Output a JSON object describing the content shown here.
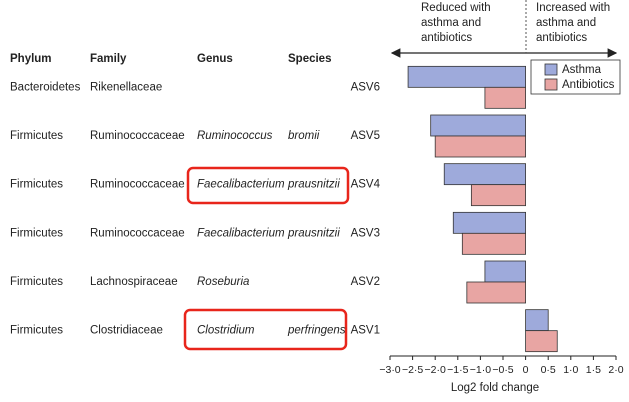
{
  "chart_data": {
    "type": "bar",
    "orientation": "horizontal",
    "categories": [
      "ASV6",
      "ASV5",
      "ASV4",
      "ASV3",
      "ASV2",
      "ASV1"
    ],
    "series": [
      {
        "name": "Asthma",
        "color": "#9eaadb",
        "values": [
          -2.6,
          -2.1,
          -1.8,
          -1.6,
          -0.9,
          0.5
        ]
      },
      {
        "name": "Antibiotics",
        "color": "#e8a5a3",
        "values": [
          -0.9,
          -2.0,
          -1.2,
          -1.4,
          -1.3,
          0.7
        ]
      }
    ],
    "xlim": [
      -3.0,
      2.0
    ],
    "xticks": [
      {
        "value": -3.0,
        "label": "−3·0"
      },
      {
        "value": -2.5,
        "label": "−2·5"
      },
      {
        "value": -2.0,
        "label": "−2·0"
      },
      {
        "value": -1.5,
        "label": "−1·5"
      },
      {
        "value": -1.0,
        "label": "−1·0"
      },
      {
        "value": -0.5,
        "label": "−0·5"
      },
      0,
      {
        "value": 0.5,
        "label": "0·5"
      },
      {
        "value": 1.0,
        "label": "1·0"
      },
      {
        "value": 1.5,
        "label": "1·5"
      },
      {
        "value": 2.0,
        "label": "2·0"
      }
    ],
    "xlabel": "Log2 fold change",
    "annotations": [
      [
        "Reduced with",
        "asthma and",
        "antibiotics"
      ],
      [
        "Increased with",
        "asthma and",
        "antibiotics"
      ]
    ],
    "legend": "upper right"
  },
  "table": {
    "headers": [
      "Phylum",
      "Family",
      "Genus",
      "Species"
    ],
    "rows": [
      [
        "Bacteroidetes",
        "Rikenellaceae",
        null,
        null
      ],
      [
        "Firmicutes",
        "Ruminococcaceae",
        "Ruminococcus",
        "bromii"
      ],
      [
        "Firmicutes",
        "Ruminococcaceae",
        "Faecalibacterium",
        "prausnitzii"
      ],
      [
        "Firmicutes",
        "Ruminococcaceae",
        "Faecalibacterium",
        "prausnitzii"
      ],
      [
        "Firmicutes",
        "Lachnospiraceae",
        "Roseburia",
        null
      ],
      [
        "Firmicutes",
        "Clostridiaceae",
        "Clostridium",
        "perfringens"
      ]
    ]
  }
}
